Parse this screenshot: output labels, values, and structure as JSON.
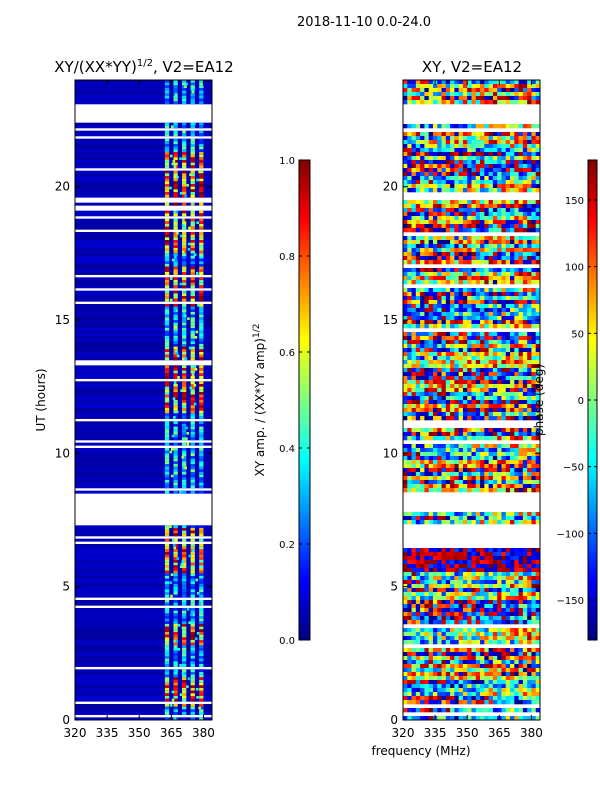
{
  "figure": {
    "suptitle": "2018-11-10 0.0-24.0",
    "xlabel": "frequency (MHz)"
  },
  "colors": {
    "jet": [
      "#00007f",
      "#0000ff",
      "#007fff",
      "#00ffff",
      "#7fff7f",
      "#ffff00",
      "#ff7f00",
      "#ff0000",
      "#7f0000"
    ],
    "white": "#ffffff"
  },
  "chart_data": [
    {
      "type": "heatmap",
      "title_main": "XY/(XX*YY)",
      "title_sup": "1/2",
      "title_suffix": ", V2=EA12",
      "ylabel": "UT (hours)",
      "xlim": [
        320,
        384
      ],
      "ylim": [
        0,
        24
      ],
      "xticks": [
        320,
        335,
        350,
        365,
        380
      ],
      "yticks": [
        0,
        5,
        10,
        15,
        20
      ],
      "colorbar": {
        "label": "XY amp. / (XX*YY amp)",
        "label_sup": "1/2",
        "range": [
          0.0,
          1.0
        ],
        "ticks": [
          "0.0",
          "0.2",
          "0.4",
          "0.6",
          "0.8",
          "1.0"
        ],
        "tick_values": [
          0.0,
          0.2,
          0.4,
          0.6,
          0.8,
          1.0
        ]
      },
      "blank_time_ranges_hours": [
        [
          7.3,
          8.5
        ],
        [
          22.4,
          23.1
        ],
        [
          13.3,
          13.45
        ],
        [
          1.9,
          2.05
        ]
      ],
      "feature_channels_MHz": [
        [
          362,
          364
        ],
        [
          366,
          368
        ],
        [
          370,
          372
        ],
        [
          374,
          376
        ],
        [
          378,
          380
        ]
      ],
      "note": "Amplitude mostly low (~0.0-0.1) below 362 MHz; high values (up to ~1.0) in narrow bands 362-381 MHz near 0.5-1.5 h, 11.5-14 h, 15.5-17 h and 21 h."
    },
    {
      "type": "heatmap",
      "title_main": "XY",
      "title_suffix": ", V2=EA12",
      "ylabel": "",
      "xlim": [
        320,
        384
      ],
      "ylim": [
        0,
        24
      ],
      "xticks": [
        320,
        335,
        350,
        365,
        380
      ],
      "yticks": [
        0,
        5,
        10,
        15,
        20
      ],
      "colorbar": {
        "label": "phase (deg)",
        "range": [
          -180,
          180
        ],
        "ticks": [
          "−150",
          "−100",
          "−50",
          "0",
          "50",
          "100",
          "150"
        ],
        "tick_values": [
          -150,
          -100,
          -50,
          0,
          50,
          100,
          150
        ]
      },
      "blank_time_ranges_hours": [
        [
          6.5,
          7.3
        ],
        [
          22.4,
          23.1
        ],
        [
          7.8,
          8.5
        ]
      ],
      "note": "Phase spans the full -180..180 deg range with noisy structure; red/blue dominated block near 5.5-7 h."
    }
  ]
}
